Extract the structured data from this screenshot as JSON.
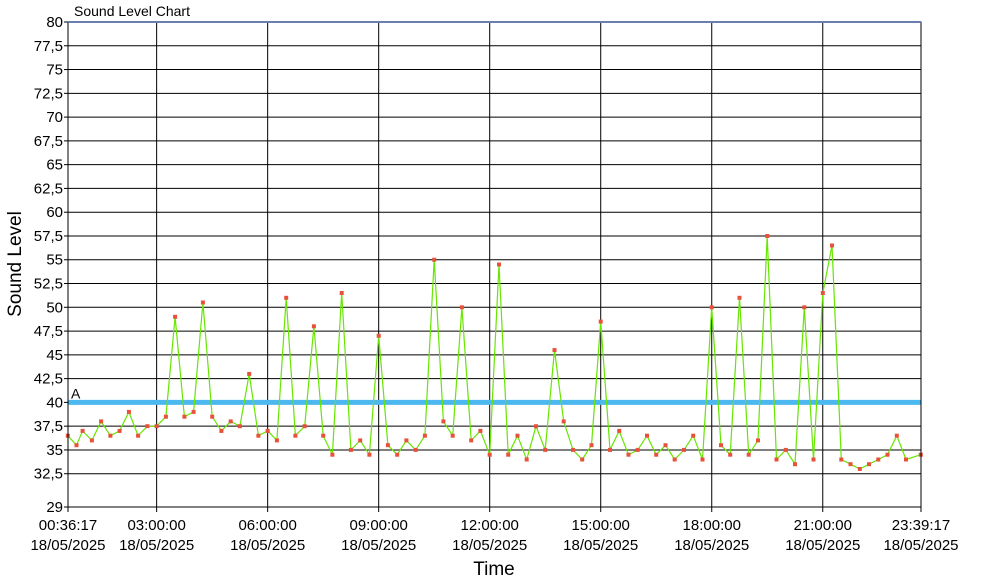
{
  "chart_data": {
    "type": "line",
    "title": "Sound Level Chart",
    "xlabel": "Time",
    "ylabel": "Sound Level",
    "ylim": [
      29,
      80
    ],
    "y_ticks": [
      "80",
      "77,5",
      "75",
      "72,5",
      "70",
      "67,5",
      "65",
      "62,5",
      "60",
      "57,5",
      "55",
      "52,5",
      "50",
      "47,5",
      "45",
      "42,5",
      "40",
      "37,5",
      "35",
      "32,5",
      "29"
    ],
    "x_ticks": [
      {
        "time": "00:36:17",
        "date": "18/05/2025"
      },
      {
        "time": "03:00:00",
        "date": "18/05/2025"
      },
      {
        "time": "06:00:00",
        "date": "18/05/2025"
      },
      {
        "time": "09:00:00",
        "date": "18/05/2025"
      },
      {
        "time": "12:00:00",
        "date": "18/05/2025"
      },
      {
        "time": "15:00:00",
        "date": "18/05/2025"
      },
      {
        "time": "18:00:00",
        "date": "18/05/2025"
      },
      {
        "time": "21:00:00",
        "date": "18/05/2025"
      },
      {
        "time": "23:39:17",
        "date": "18/05/2025"
      }
    ],
    "grid": true,
    "reference_line": {
      "label": "A",
      "value": 40,
      "color": "#4db8f0"
    },
    "series": [
      {
        "color": "#66e600",
        "marker_color": "#e8523a",
        "x": [
          "00:36",
          "00:50",
          "01:00",
          "01:15",
          "01:30",
          "01:45",
          "02:00",
          "02:15",
          "02:30",
          "02:45",
          "03:00",
          "03:15",
          "03:30",
          "03:45",
          "04:00",
          "04:15",
          "04:30",
          "04:45",
          "05:00",
          "05:15",
          "05:30",
          "05:45",
          "06:00",
          "06:15",
          "06:30",
          "06:45",
          "07:00",
          "07:15",
          "07:30",
          "07:45",
          "08:00",
          "08:15",
          "08:30",
          "08:45",
          "09:00",
          "09:15",
          "09:30",
          "09:45",
          "10:00",
          "10:15",
          "10:30",
          "10:45",
          "11:00",
          "11:15",
          "11:30",
          "11:45",
          "12:00",
          "12:15",
          "12:30",
          "12:45",
          "13:00",
          "13:15",
          "13:30",
          "13:45",
          "14:00",
          "14:15",
          "14:30",
          "14:45",
          "15:00",
          "15:15",
          "15:30",
          "15:45",
          "16:00",
          "16:15",
          "16:30",
          "16:45",
          "17:00",
          "17:15",
          "17:30",
          "17:45",
          "18:00",
          "18:15",
          "18:30",
          "18:45",
          "19:00",
          "19:15",
          "19:30",
          "19:45",
          "20:00",
          "20:15",
          "20:30",
          "20:45",
          "21:00",
          "21:15",
          "21:30",
          "21:45",
          "22:00",
          "22:15",
          "22:30",
          "22:45",
          "23:00",
          "23:15",
          "23:39"
        ],
        "values": [
          36.5,
          35.5,
          37,
          36,
          38,
          36.5,
          37,
          39,
          36.5,
          37.5,
          37.5,
          38.5,
          49,
          38.5,
          39,
          50.5,
          38.5,
          37,
          38,
          37.5,
          43,
          36.5,
          37,
          36,
          51,
          36.5,
          37.5,
          48,
          36.5,
          34.5,
          51.5,
          35,
          36,
          34.5,
          47,
          35.5,
          34.5,
          36,
          35,
          36.5,
          55,
          38,
          36.5,
          50,
          36,
          37,
          34.5,
          54.5,
          34.5,
          36.5,
          34,
          37.5,
          35,
          45.5,
          38,
          35,
          34,
          35.5,
          48.5,
          35,
          37,
          34.5,
          35,
          36.5,
          34.5,
          35.5,
          34,
          35,
          36.5,
          34,
          50,
          35.5,
          34.5,
          51,
          34.5,
          36,
          57.5,
          34,
          35,
          33.5,
          50,
          34,
          51.5,
          56.5,
          34,
          33.5,
          33,
          33.5,
          34,
          34.5,
          36.5,
          34,
          34.5
        ]
      }
    ]
  }
}
